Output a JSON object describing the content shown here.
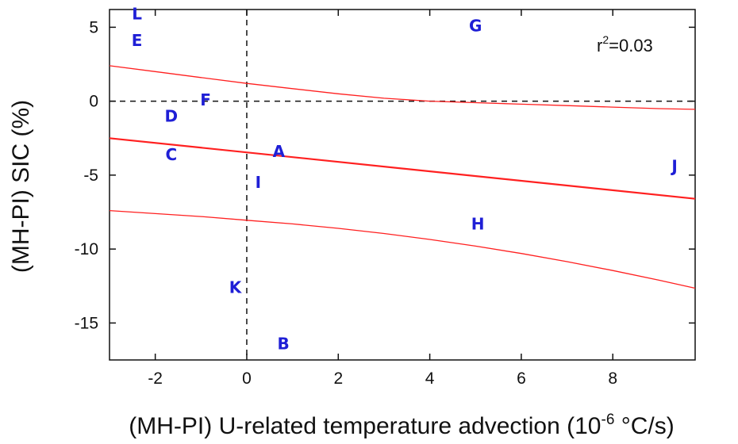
{
  "chart_data": {
    "type": "scatter",
    "title": "",
    "xlabel": "(MH-PI) U-related temperature advection (10",
    "xlabel_sup": "-6",
    "xlabel_tail": " °C/s)",
    "ylabel": "(MH-PI) SIC (%)",
    "xlim": [
      -3.0,
      9.8
    ],
    "ylim": [
      -17.5,
      6.2
    ],
    "x_ticks": [
      -2,
      0,
      2,
      4,
      6,
      8
    ],
    "y_ticks": [
      5,
      0,
      -5,
      -10,
      -15
    ],
    "annotation": {
      "prefix": "r",
      "sup": "2",
      "suffix": "=0.03"
    },
    "point_color": "#1f1fd6",
    "line_color": "#ff2020",
    "reference_lines": [
      {
        "axis": "x",
        "value": 0
      },
      {
        "axis": "y",
        "value": 0
      }
    ],
    "points": [
      {
        "label": "L",
        "x": -2.4,
        "y": 5.9
      },
      {
        "label": "E",
        "x": -2.4,
        "y": 4.1
      },
      {
        "label": "G",
        "x": 5.0,
        "y": 5.1
      },
      {
        "label": "F",
        "x": -0.9,
        "y": 0.1
      },
      {
        "label": "D",
        "x": -1.65,
        "y": -1.0
      },
      {
        "label": "C",
        "x": -1.65,
        "y": -3.6
      },
      {
        "label": "A",
        "x": 0.7,
        "y": -3.4
      },
      {
        "label": "I",
        "x": 0.25,
        "y": -5.5
      },
      {
        "label": "J",
        "x": 9.35,
        "y": -4.4
      },
      {
        "label": "H",
        "x": 5.05,
        "y": -8.3
      },
      {
        "label": "K",
        "x": -0.25,
        "y": -12.6
      },
      {
        "label": "B",
        "x": 0.8,
        "y": -16.4
      }
    ],
    "fit_line": [
      {
        "x": -3.0,
        "y": -2.5
      },
      {
        "x": 9.8,
        "y": -6.6
      }
    ],
    "confidence_upper": [
      {
        "x": -3.0,
        "y": 2.4
      },
      {
        "x": -2.0,
        "y": 2.0
      },
      {
        "x": -1.0,
        "y": 1.6
      },
      {
        "x": 0.0,
        "y": 1.2
      },
      {
        "x": 1.0,
        "y": 0.85
      },
      {
        "x": 2.0,
        "y": 0.5
      },
      {
        "x": 3.0,
        "y": 0.2
      },
      {
        "x": 4.0,
        "y": 0.0
      },
      {
        "x": 5.0,
        "y": -0.1
      },
      {
        "x": 6.0,
        "y": -0.2
      },
      {
        "x": 7.0,
        "y": -0.3
      },
      {
        "x": 8.0,
        "y": -0.4
      },
      {
        "x": 9.0,
        "y": -0.5
      },
      {
        "x": 9.8,
        "y": -0.55
      }
    ],
    "confidence_lower": [
      {
        "x": -3.0,
        "y": -7.4
      },
      {
        "x": -2.0,
        "y": -7.6
      },
      {
        "x": -1.0,
        "y": -7.8
      },
      {
        "x": 0.0,
        "y": -8.05
      },
      {
        "x": 1.0,
        "y": -8.3
      },
      {
        "x": 2.0,
        "y": -8.6
      },
      {
        "x": 3.0,
        "y": -8.95
      },
      {
        "x": 4.0,
        "y": -9.35
      },
      {
        "x": 5.0,
        "y": -9.8
      },
      {
        "x": 6.0,
        "y": -10.3
      },
      {
        "x": 7.0,
        "y": -10.85
      },
      {
        "x": 8.0,
        "y": -11.45
      },
      {
        "x": 9.0,
        "y": -12.1
      },
      {
        "x": 9.8,
        "y": -12.65
      }
    ]
  }
}
